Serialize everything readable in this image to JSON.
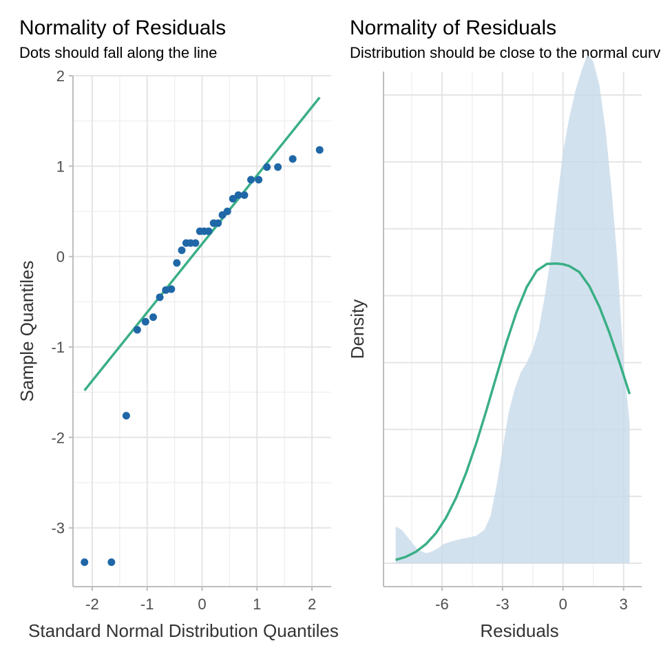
{
  "panels": [
    {
      "title": "Normality of Residuals",
      "subtitle": "Dots should fall along the line"
    },
    {
      "title": "Normality of Residuals",
      "subtitle": "Distribution should be close to the normal curve"
    }
  ],
  "colors": {
    "points": "#1f67a7",
    "line": "#3aaf85",
    "density_fill": "#c7d9ea",
    "grid": "#e5e5e5",
    "tick_text": "#4d4d4d",
    "axis": "#bdbdbd"
  },
  "chart_data": [
    {
      "type": "scatter",
      "xlabel": "Standard Normal Distribution Quantiles",
      "ylabel": "Sample Quantiles",
      "xlim": [
        -2.35,
        2.35
      ],
      "ylim": [
        -3.65,
        2.0
      ],
      "xticks": [
        -2,
        -1,
        0,
        1,
        2
      ],
      "yticks": [
        -3,
        -2,
        -1,
        0,
        1,
        2
      ],
      "grid": true,
      "points": [
        {
          "x": -2.14,
          "y": -3.38
        },
        {
          "x": -1.65,
          "y": -3.38
        },
        {
          "x": -1.38,
          "y": -1.76
        },
        {
          "x": -1.18,
          "y": -0.81
        },
        {
          "x": -1.03,
          "y": -0.72
        },
        {
          "x": -0.89,
          "y": -0.67
        },
        {
          "x": -0.77,
          "y": -0.45
        },
        {
          "x": -0.66,
          "y": -0.37
        },
        {
          "x": -0.56,
          "y": -0.36
        },
        {
          "x": -0.46,
          "y": -0.07
        },
        {
          "x": -0.37,
          "y": 0.07
        },
        {
          "x": -0.29,
          "y": 0.15
        },
        {
          "x": -0.21,
          "y": 0.15
        },
        {
          "x": -0.12,
          "y": 0.15
        },
        {
          "x": -0.04,
          "y": 0.28
        },
        {
          "x": 0.04,
          "y": 0.28
        },
        {
          "x": 0.12,
          "y": 0.28
        },
        {
          "x": 0.21,
          "y": 0.37
        },
        {
          "x": 0.29,
          "y": 0.37
        },
        {
          "x": 0.37,
          "y": 0.46
        },
        {
          "x": 0.46,
          "y": 0.5
        },
        {
          "x": 0.56,
          "y": 0.64
        },
        {
          "x": 0.66,
          "y": 0.68
        },
        {
          "x": 0.77,
          "y": 0.68
        },
        {
          "x": 0.89,
          "y": 0.85
        },
        {
          "x": 1.03,
          "y": 0.85
        },
        {
          "x": 1.18,
          "y": 0.99
        },
        {
          "x": 1.38,
          "y": 0.99
        },
        {
          "x": 1.65,
          "y": 1.08
        },
        {
          "x": 2.14,
          "y": 1.18
        }
      ],
      "reference_line": [
        {
          "x": -2.14,
          "y": -1.48
        },
        {
          "x": 2.14,
          "y": 1.76
        }
      ]
    },
    {
      "type": "area",
      "xlabel": "Residuals",
      "ylabel": "Density",
      "xlim": [
        -8.9,
        3.9
      ],
      "ylim": [
        -0.007,
        0.147
      ],
      "xticks": [
        -6,
        -3,
        0,
        3
      ],
      "grid": true,
      "density": {
        "x": [
          -8.3,
          -8.0,
          -7.6,
          -7.2,
          -6.8,
          -6.5,
          -6.2,
          -5.9,
          -5.5,
          -5.1,
          -4.7,
          -4.3,
          -3.9,
          -3.6,
          -3.3,
          -3.0,
          -2.7,
          -2.4,
          -2.1,
          -1.8,
          -1.5,
          -1.2,
          -0.9,
          -0.6,
          -0.3,
          0.0,
          0.3,
          0.6,
          0.9,
          1.2,
          1.5,
          1.8,
          2.1,
          2.4,
          2.7,
          3.0,
          3.3
        ],
        "y": [
          0.011,
          0.01,
          0.007,
          0.004,
          0.003,
          0.0035,
          0.0045,
          0.0058,
          0.0066,
          0.0072,
          0.0077,
          0.0082,
          0.01,
          0.014,
          0.023,
          0.034,
          0.045,
          0.052,
          0.057,
          0.06,
          0.064,
          0.07,
          0.08,
          0.092,
          0.108,
          0.123,
          0.133,
          0.141,
          0.147,
          0.152,
          0.15,
          0.143,
          0.13,
          0.112,
          0.09,
          0.06,
          0.042
        ]
      },
      "normal_curve": {
        "x": [
          -8.3,
          -7.8,
          -7.3,
          -6.8,
          -6.3,
          -5.8,
          -5.3,
          -4.8,
          -4.3,
          -3.8,
          -3.3,
          -2.8,
          -2.3,
          -1.8,
          -1.3,
          -0.8,
          -0.3,
          0.0,
          0.3,
          0.8,
          1.3,
          1.8,
          2.3,
          2.8,
          3.3
        ],
        "y": [
          0.001,
          0.0019,
          0.0034,
          0.0057,
          0.009,
          0.0136,
          0.0196,
          0.0271,
          0.0359,
          0.0457,
          0.056,
          0.0661,
          0.0752,
          0.0826,
          0.0875,
          0.0895,
          0.0896,
          0.0894,
          0.0889,
          0.0871,
          0.0829,
          0.0767,
          0.0689,
          0.06,
          0.0506
        ]
      }
    }
  ]
}
